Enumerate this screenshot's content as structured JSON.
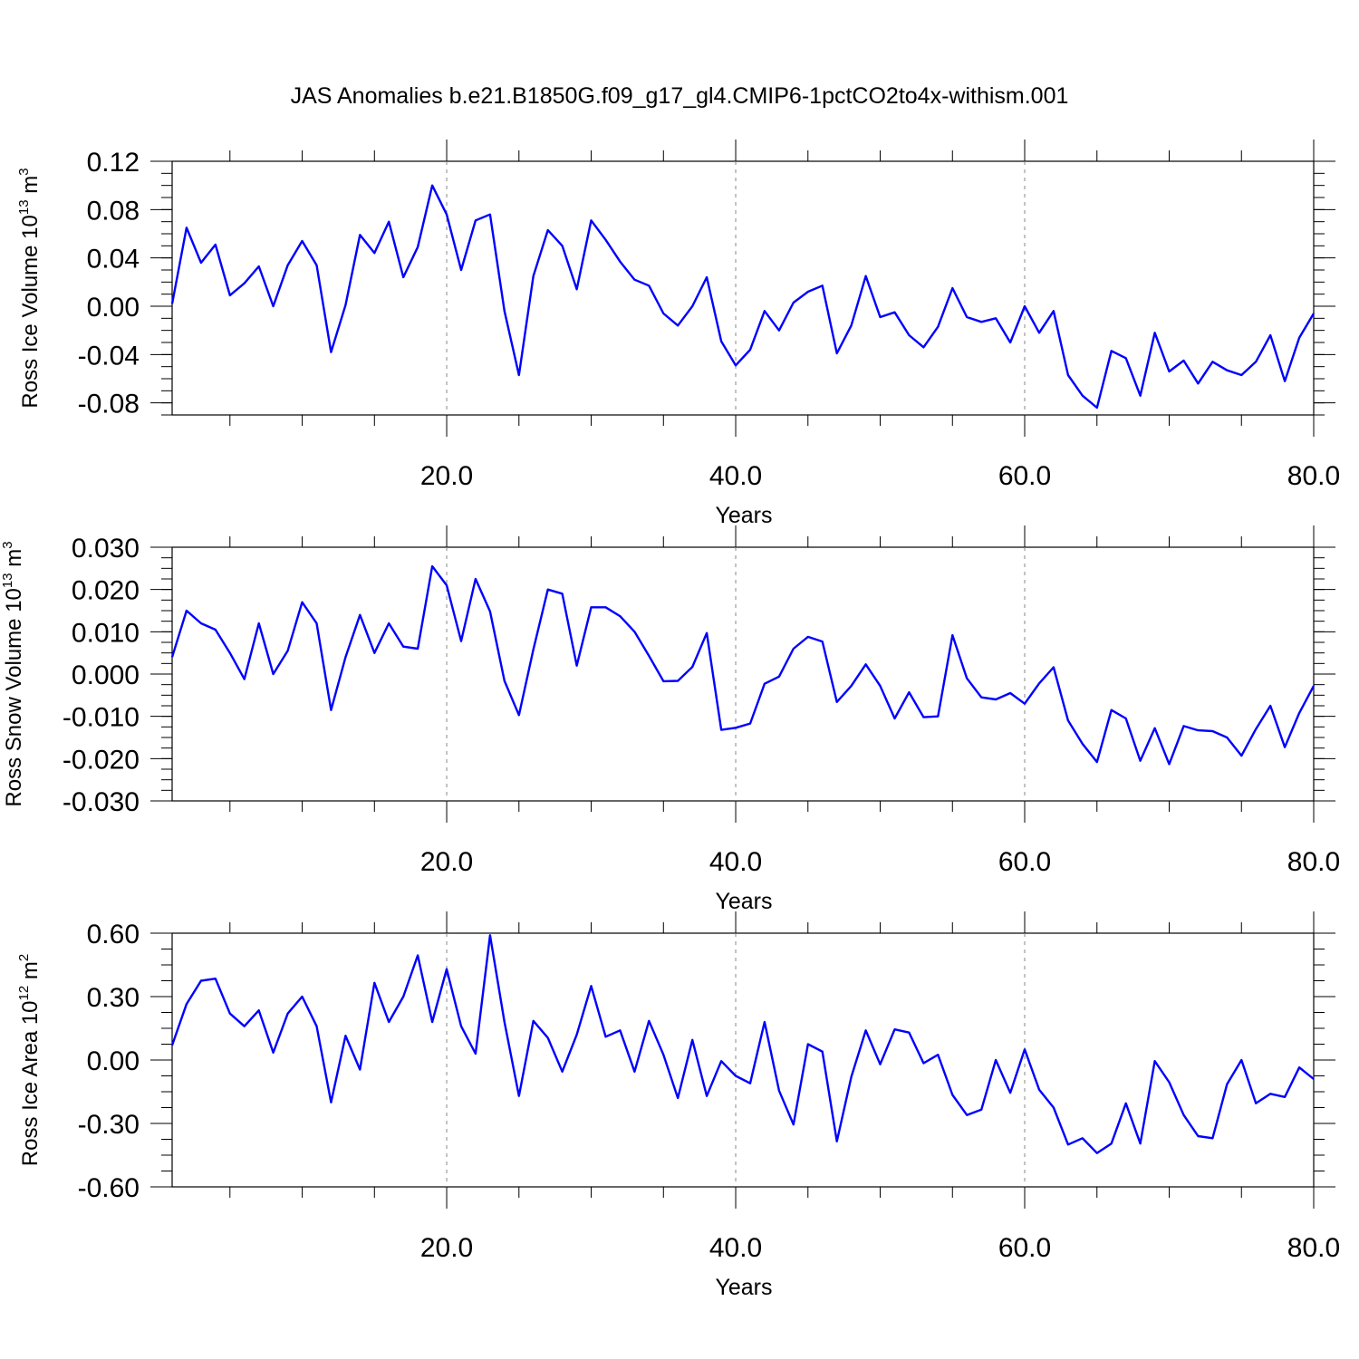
{
  "title": "JAS Anomalies b.e21.B1850G.f09_g17_gl4.CMIP6-1pctCO2to4x-withism.001",
  "colors": {
    "line": "#0000ff",
    "axis": "#000000",
    "grid": "#888888"
  },
  "chart_data": [
    {
      "type": "line",
      "title": "",
      "xlabel": "Years",
      "ylabel": {
        "prefix": "Ross Ice Volume 10",
        "exp": "13",
        "unit": " m",
        "unit_exp": "3"
      },
      "xlim": [
        1,
        80
      ],
      "ylim": [
        -0.09,
        0.12
      ],
      "grid": "dashed vertical at 20, 40, 60",
      "x_ticks": [
        20,
        40,
        60,
        80
      ],
      "x_tick_labels": [
        "20.0",
        "40.0",
        "60.0",
        "80.0"
      ],
      "y_ticks": [
        0.12,
        0.08,
        0.04,
        0.0,
        -0.04,
        -0.08
      ],
      "y_tick_labels": [
        "0.12",
        "0.08",
        "0.04",
        "0.00",
        "-0.04",
        "-0.08"
      ],
      "x": [
        1,
        2,
        3,
        4,
        5,
        6,
        7,
        8,
        9,
        10,
        11,
        12,
        13,
        14,
        15,
        16,
        17,
        18,
        19,
        20,
        21,
        22,
        23,
        24,
        25,
        26,
        27,
        28,
        29,
        30,
        31,
        32,
        33,
        34,
        35,
        36,
        37,
        38,
        39,
        40,
        41,
        42,
        43,
        44,
        45,
        46,
        47,
        48,
        49,
        50,
        51,
        52,
        53,
        54,
        55,
        56,
        57,
        58,
        59,
        60,
        61,
        62,
        63,
        64,
        65,
        66,
        67,
        68,
        69,
        70,
        71,
        72,
        73,
        74,
        75,
        76,
        77,
        78,
        79,
        80
      ],
      "values": [
        0.002,
        0.065,
        0.036,
        0.051,
        0.009,
        0.019,
        0.033,
        0.0,
        0.034,
        0.054,
        0.034,
        -0.038,
        0.001,
        0.059,
        0.044,
        0.07,
        0.024,
        0.049,
        0.1,
        0.076,
        0.03,
        0.071,
        0.076,
        -0.004,
        -0.057,
        0.025,
        0.063,
        0.05,
        0.014,
        0.071,
        0.055,
        0.037,
        0.022,
        0.017,
        -0.006,
        -0.016,
        0.0,
        0.024,
        -0.029,
        -0.049,
        -0.036,
        -0.004,
        -0.02,
        0.003,
        0.012,
        0.017,
        -0.039,
        -0.016,
        0.025,
        -0.009,
        -0.005,
        -0.024,
        -0.034,
        -0.017,
        0.015,
        -0.009,
        -0.013,
        -0.01,
        -0.03,
        0.0,
        -0.022,
        -0.004,
        -0.057,
        -0.074,
        -0.084,
        -0.037,
        -0.043,
        -0.074,
        -0.022,
        -0.054,
        -0.045,
        -0.064,
        -0.046,
        -0.053,
        -0.057,
        -0.046,
        -0.024,
        -0.062,
        -0.026,
        -0.006
      ]
    },
    {
      "type": "line",
      "title": "",
      "xlabel": "Years",
      "ylabel": {
        "prefix": "Ross Snow Volume 10",
        "exp": "13",
        "unit": " m",
        "unit_exp": "3"
      },
      "xlim": [
        1,
        80
      ],
      "ylim": [
        -0.03,
        0.03
      ],
      "grid": "dashed vertical at 20, 40, 60",
      "x_ticks": [
        20,
        40,
        60,
        80
      ],
      "x_tick_labels": [
        "20.0",
        "40.0",
        "60.0",
        "80.0"
      ],
      "y_ticks": [
        0.03,
        0.02,
        0.01,
        0.0,
        -0.01,
        -0.02,
        -0.03
      ],
      "y_tick_labels": [
        "0.030",
        "0.020",
        "0.010",
        "0.000",
        "-0.010",
        "-0.020",
        "-0.030"
      ],
      "x": [
        1,
        2,
        3,
        4,
        5,
        6,
        7,
        8,
        9,
        10,
        11,
        12,
        13,
        14,
        15,
        16,
        17,
        18,
        19,
        20,
        21,
        22,
        23,
        24,
        25,
        26,
        27,
        28,
        29,
        30,
        31,
        32,
        33,
        34,
        35,
        36,
        37,
        38,
        39,
        40,
        41,
        42,
        43,
        44,
        45,
        46,
        47,
        48,
        49,
        50,
        51,
        52,
        53,
        54,
        55,
        56,
        57,
        58,
        59,
        60,
        61,
        62,
        63,
        64,
        65,
        66,
        67,
        68,
        69,
        70,
        71,
        72,
        73,
        74,
        75,
        76,
        77,
        78,
        79,
        80
      ],
      "values": [
        0.004,
        0.015,
        0.012,
        0.0105,
        0.005,
        -0.0012,
        0.012,
        0.0,
        0.0055,
        0.017,
        0.012,
        -0.0085,
        0.004,
        0.014,
        0.005,
        0.012,
        0.0065,
        0.006,
        0.0255,
        0.021,
        0.0078,
        0.0225,
        0.0148,
        -0.0016,
        -0.0097,
        0.0058,
        0.02,
        0.019,
        0.002,
        0.0158,
        0.0158,
        0.0137,
        0.01,
        0.0043,
        -0.0017,
        -0.0016,
        0.0017,
        0.0097,
        -0.0132,
        -0.0127,
        -0.0117,
        -0.0023,
        -0.0006,
        0.006,
        0.0088,
        0.0077,
        -0.0066,
        -0.0028,
        0.0023,
        -0.0028,
        -0.0105,
        -0.0043,
        -0.0102,
        -0.01,
        0.0092,
        -0.001,
        -0.0055,
        -0.006,
        -0.0045,
        -0.007,
        -0.0022,
        0.0016,
        -0.011,
        -0.0165,
        -0.0208,
        -0.0085,
        -0.0105,
        -0.0205,
        -0.0128,
        -0.0213,
        -0.0123,
        -0.0133,
        -0.0135,
        -0.015,
        -0.0193,
        -0.013,
        -0.0075,
        -0.0173,
        -0.0092,
        -0.0028
      ]
    },
    {
      "type": "line",
      "title": "",
      "xlabel": "Years",
      "ylabel": {
        "prefix": "Ross Ice Area 10",
        "exp": "12",
        "unit": " m",
        "unit_exp": "2"
      },
      "xlim": [
        1,
        80
      ],
      "ylim": [
        -0.6,
        0.6
      ],
      "grid": "dashed vertical at 20, 40, 60",
      "x_ticks": [
        20,
        40,
        60,
        80
      ],
      "x_tick_labels": [
        "20.0",
        "40.0",
        "60.0",
        "80.0"
      ],
      "y_ticks": [
        0.6,
        0.3,
        0.0,
        -0.3,
        -0.6
      ],
      "y_tick_labels": [
        "0.60",
        "0.30",
        "0.00",
        "-0.30",
        "-0.60"
      ],
      "x": [
        1,
        2,
        3,
        4,
        5,
        6,
        7,
        8,
        9,
        10,
        11,
        12,
        13,
        14,
        15,
        16,
        17,
        18,
        19,
        20,
        21,
        22,
        23,
        24,
        25,
        26,
        27,
        28,
        29,
        30,
        31,
        32,
        33,
        34,
        35,
        36,
        37,
        38,
        39,
        40,
        41,
        42,
        43,
        44,
        45,
        46,
        47,
        48,
        49,
        50,
        51,
        52,
        53,
        54,
        55,
        56,
        57,
        58,
        59,
        60,
        61,
        62,
        63,
        64,
        65,
        66,
        67,
        68,
        69,
        70,
        71,
        72,
        73,
        74,
        75,
        76,
        77,
        78,
        79,
        80
      ],
      "values": [
        0.07,
        0.265,
        0.375,
        0.385,
        0.22,
        0.16,
        0.235,
        0.035,
        0.22,
        0.3,
        0.16,
        -0.2,
        0.115,
        -0.045,
        0.365,
        0.18,
        0.3,
        0.495,
        0.18,
        0.43,
        0.16,
        0.03,
        0.59,
        0.18,
        -0.17,
        0.185,
        0.105,
        -0.055,
        0.12,
        0.35,
        0.11,
        0.14,
        -0.055,
        0.185,
        0.025,
        -0.18,
        0.095,
        -0.17,
        -0.005,
        -0.075,
        -0.11,
        0.18,
        -0.145,
        -0.305,
        0.075,
        0.04,
        -0.385,
        -0.08,
        0.14,
        -0.02,
        0.145,
        0.13,
        -0.015,
        0.025,
        -0.165,
        -0.26,
        -0.235,
        0.0,
        -0.155,
        0.05,
        -0.14,
        -0.225,
        -0.4,
        -0.37,
        -0.44,
        -0.395,
        -0.205,
        -0.395,
        -0.005,
        -0.105,
        -0.26,
        -0.36,
        -0.37,
        -0.115,
        0.0,
        -0.205,
        -0.16,
        -0.175,
        -0.035,
        -0.09
      ]
    }
  ]
}
